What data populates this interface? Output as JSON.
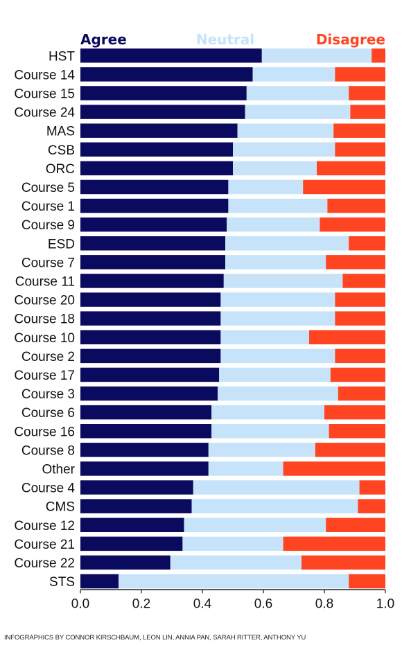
{
  "colors": {
    "agree": "#0a0a5e",
    "neutral": "#c7e3fa",
    "disagree": "#ff4422",
    "axis": "#111111"
  },
  "credit": "INFOGRAPHICS BY CONNOR KIRSCHBAUM, LEON LIN, ANNIA PAN, SARAH RITTER, ANTHONY YU",
  "chart_data": {
    "type": "bar",
    "orientation": "horizontal",
    "stacked": true,
    "title": "",
    "xlabel": "",
    "ylabel": "",
    "xlim": [
      0,
      1
    ],
    "x_ticks": [
      "0.0",
      "0.2",
      "0.4",
      "0.6",
      "0.8",
      "1.0"
    ],
    "grid": false,
    "legend_position": "top",
    "categories": [
      "HST",
      "Course 14",
      "Course 15",
      "Course 24",
      "MAS",
      "CSB",
      "ORC",
      "Course 5",
      "Course 1",
      "Course 9",
      "ESD",
      "Course 7",
      "Course 11",
      "Course 20",
      "Course 18",
      "Course 10",
      "Course 2",
      "Course 17",
      "Course 3",
      "Course 6",
      "Course 16",
      "Course 8",
      "Other",
      "Course 4",
      "CMS",
      "Course 12",
      "Course 21",
      "Course 22",
      "STS"
    ],
    "series": [
      {
        "name": "Agree",
        "color": "#0a0a5e",
        "values": [
          0.595,
          0.565,
          0.545,
          0.54,
          0.515,
          0.5,
          0.5,
          0.485,
          0.485,
          0.48,
          0.475,
          0.475,
          0.47,
          0.46,
          0.46,
          0.46,
          0.46,
          0.455,
          0.45,
          0.43,
          0.43,
          0.42,
          0.42,
          0.37,
          0.365,
          0.34,
          0.335,
          0.295,
          0.125
        ]
      },
      {
        "name": "Neutral",
        "color": "#c7e3fa",
        "values": [
          0.36,
          0.27,
          0.335,
          0.345,
          0.315,
          0.335,
          0.275,
          0.245,
          0.325,
          0.305,
          0.405,
          0.33,
          0.39,
          0.375,
          0.375,
          0.29,
          0.375,
          0.365,
          0.395,
          0.37,
          0.385,
          0.35,
          0.245,
          0.545,
          0.545,
          0.465,
          0.33,
          0.43,
          0.755
        ]
      },
      {
        "name": "Disagree",
        "color": "#ff4422",
        "values": [
          0.045,
          0.165,
          0.12,
          0.115,
          0.17,
          0.165,
          0.225,
          0.27,
          0.19,
          0.215,
          0.12,
          0.195,
          0.14,
          0.165,
          0.165,
          0.25,
          0.165,
          0.18,
          0.155,
          0.2,
          0.185,
          0.23,
          0.335,
          0.085,
          0.09,
          0.195,
          0.335,
          0.275,
          0.12
        ]
      }
    ]
  }
}
